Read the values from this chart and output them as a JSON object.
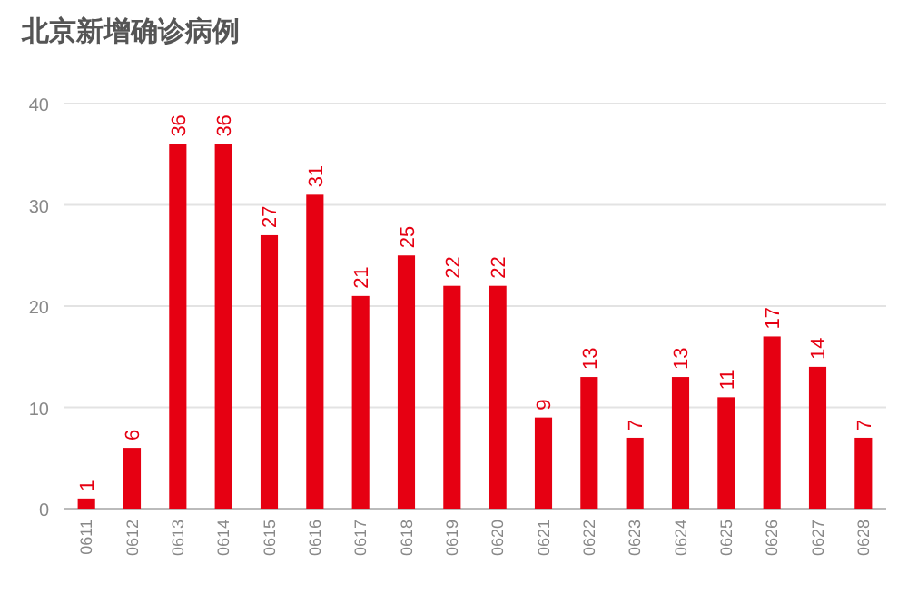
{
  "chart_data": {
    "type": "bar",
    "title": "北京新增确诊病例",
    "categories": [
      "0611",
      "0612",
      "0613",
      "0614",
      "0615",
      "0616",
      "0617",
      "0618",
      "0619",
      "0620",
      "0621",
      "0622",
      "0623",
      "0624",
      "0625",
      "0626",
      "0627",
      "0628"
    ],
    "values": [
      1,
      6,
      36,
      36,
      27,
      31,
      21,
      25,
      22,
      22,
      9,
      13,
      7,
      13,
      11,
      17,
      14,
      7
    ],
    "color": "#e60012",
    "ylim": [
      0,
      40
    ],
    "yticks": [
      0,
      10,
      20,
      30,
      40
    ],
    "grid": "y",
    "data_labels": true
  }
}
